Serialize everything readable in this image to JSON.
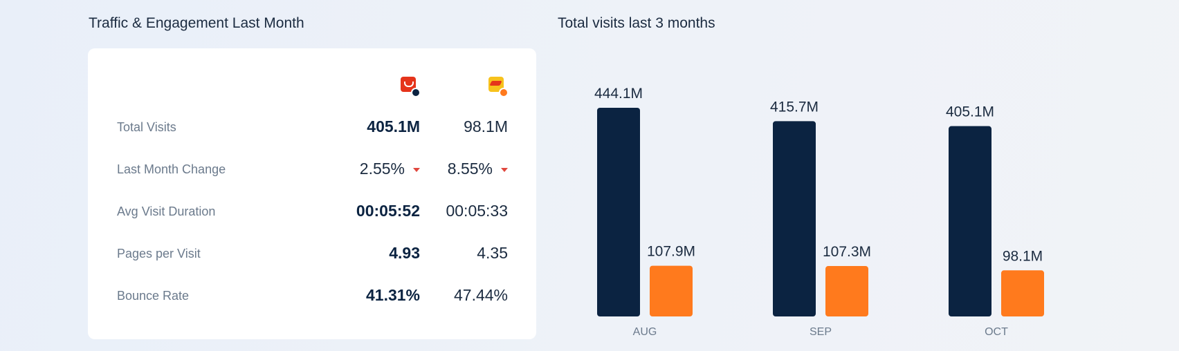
{
  "left_panel": {
    "title": "Traffic & Engagement Last Month",
    "rows": [
      {
        "label": "Total Visits",
        "site_a": "405.1M",
        "site_b": "98.1M"
      },
      {
        "label": "Last Month Change",
        "site_a": "2.55%",
        "site_b": "8.55%"
      },
      {
        "label": "Avg Visit Duration",
        "site_a": "00:05:52",
        "site_b": "00:05:33"
      },
      {
        "label": "Pages per Visit",
        "site_a": "4.93",
        "site_b": "4.35"
      },
      {
        "label": "Bounce Rate",
        "site_a": "41.31%",
        "site_b": "47.44%"
      }
    ],
    "site_icons": [
      "shopping-bag-icon",
      "yellow-logo-icon"
    ],
    "colors": {
      "site_a": "#0b2341",
      "site_b": "#ff7a1d",
      "decrease": "#e0473e"
    }
  },
  "chart_data": {
    "type": "bar",
    "title": "Total visits last 3 months",
    "categories": [
      "AUG",
      "SEP",
      "OCT"
    ],
    "series": [
      {
        "values": [
          444.1,
          415.7,
          405.1
        ],
        "labels": [
          "444.1M",
          "415.7M",
          "405.1M"
        ],
        "color": "#0b2341"
      },
      {
        "values": [
          107.9,
          107.3,
          98.1
        ],
        "labels": [
          "107.9M",
          "107.3M",
          "98.1M"
        ],
        "color": "#ff7a1d"
      }
    ],
    "ylim": [
      0,
      444.1
    ],
    "grid": false
  }
}
